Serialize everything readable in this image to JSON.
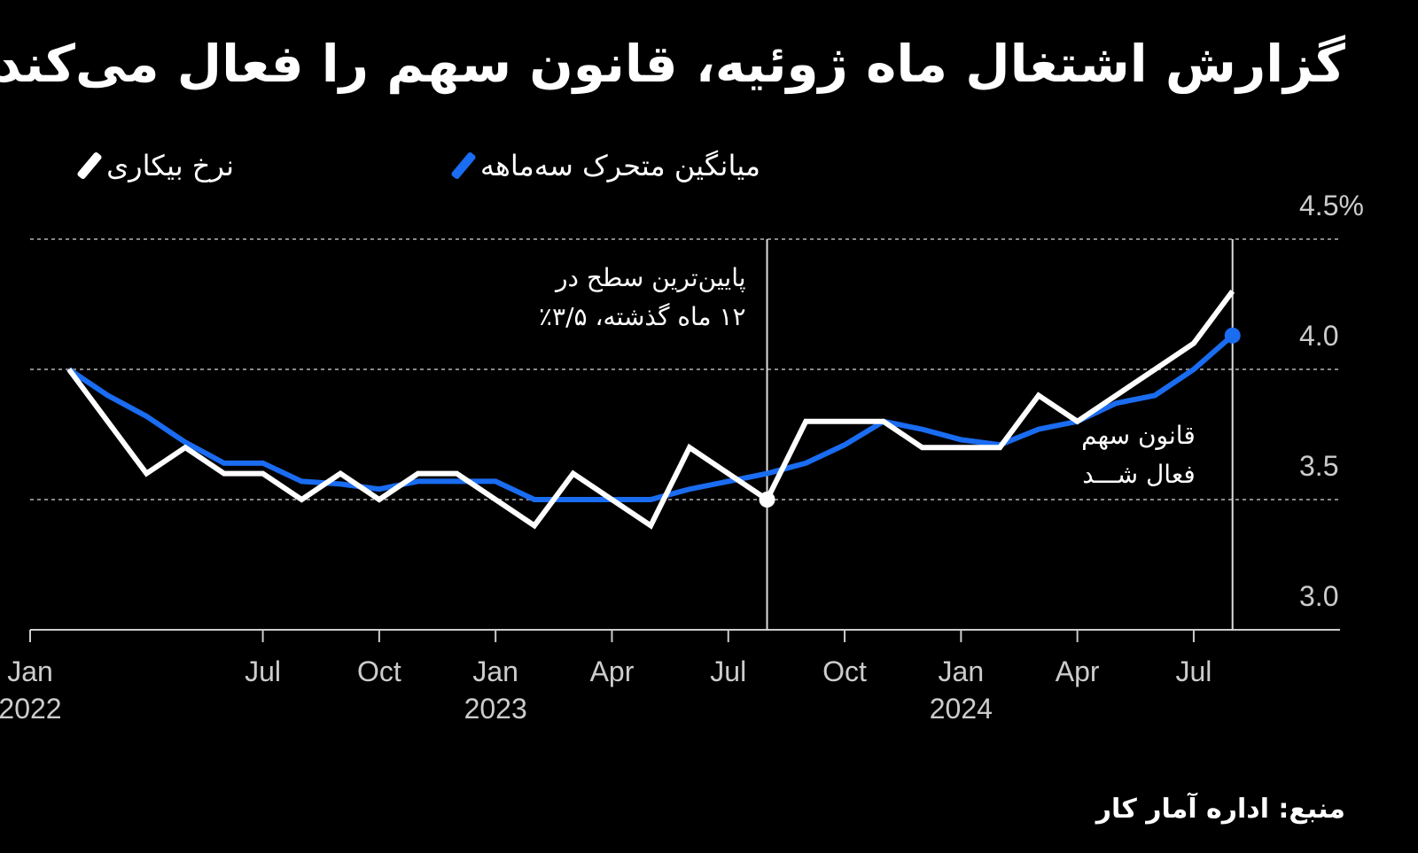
{
  "chart_data": {
    "type": "line",
    "title": "گزارش اشتغال ماه ژوئیه، قانون سهم را فعال می‌کند",
    "source": "منبع: اداره آمار کار",
    "x": [
      "2022-02",
      "2022-03",
      "2022-04",
      "2022-05",
      "2022-06",
      "2022-07",
      "2022-08",
      "2022-09",
      "2022-10",
      "2022-11",
      "2022-12",
      "2023-01",
      "2023-02",
      "2023-03",
      "2023-04",
      "2023-05",
      "2023-06",
      "2023-07",
      "2023-08",
      "2023-09",
      "2023-10",
      "2023-11",
      "2023-12",
      "2024-01",
      "2024-02",
      "2024-03",
      "2024-04",
      "2024-05",
      "2024-06",
      "2024-07",
      "2024-08"
    ],
    "xlim": [
      "2022-01",
      "2024-11"
    ],
    "xticks": [
      {
        "value": "2022-01",
        "label": "Jan\n2022"
      },
      {
        "value": "2022-07",
        "label": "Jul"
      },
      {
        "value": "2022-10",
        "label": "Oct"
      },
      {
        "value": "2023-01",
        "label": "Jan\n2023"
      },
      {
        "value": "2023-04",
        "label": "Apr"
      },
      {
        "value": "2023-07",
        "label": "Jul"
      },
      {
        "value": "2023-10",
        "label": "Oct"
      },
      {
        "value": "2024-01",
        "label": "Jan\n2024"
      },
      {
        "value": "2024-04",
        "label": "Apr"
      },
      {
        "value": "2024-07",
        "label": "Jul"
      }
    ],
    "ylim": [
      3.0,
      4.5
    ],
    "yticks": [
      {
        "value": 3.0,
        "label": "3.0"
      },
      3.5,
      {
        "value": 4.0,
        "label": "4.0"
      },
      {
        "value": 4.5,
        "label": "4.5%"
      }
    ],
    "grid": true,
    "series": [
      {
        "name": "نرخ بیکاری",
        "color": "#ffffff",
        "values": [
          4.0,
          3.8,
          3.6,
          3.7,
          3.6,
          3.6,
          3.5,
          3.6,
          3.5,
          3.6,
          3.6,
          3.5,
          3.4,
          3.6,
          3.5,
          3.4,
          3.7,
          3.6,
          3.5,
          3.8,
          3.8,
          3.8,
          3.7,
          3.7,
          3.7,
          3.9,
          3.8,
          3.9,
          4.0,
          4.1,
          4.3
        ]
      },
      {
        "name": "میانگین متحرک سه‌ماهه",
        "color": "#1a6cf0",
        "values": [
          4.0,
          3.9,
          3.82,
          3.72,
          3.64,
          3.64,
          3.57,
          3.56,
          3.54,
          3.57,
          3.57,
          3.57,
          3.5,
          3.5,
          3.5,
          3.5,
          3.54,
          3.57,
          3.6,
          3.64,
          3.71,
          3.8,
          3.77,
          3.73,
          3.71,
          3.77,
          3.8,
          3.87,
          3.9,
          4.0,
          4.13
        ]
      }
    ],
    "annotations": [
      {
        "text": "پایین‌ترین سطح در\n۱۲ ماه گذشته، ۳/۵٪",
        "x": "2023-08",
        "series": 0
      },
      {
        "text": "قانون سهم\nفعال شـــد",
        "x": "2024-08",
        "series": 1
      }
    ]
  }
}
